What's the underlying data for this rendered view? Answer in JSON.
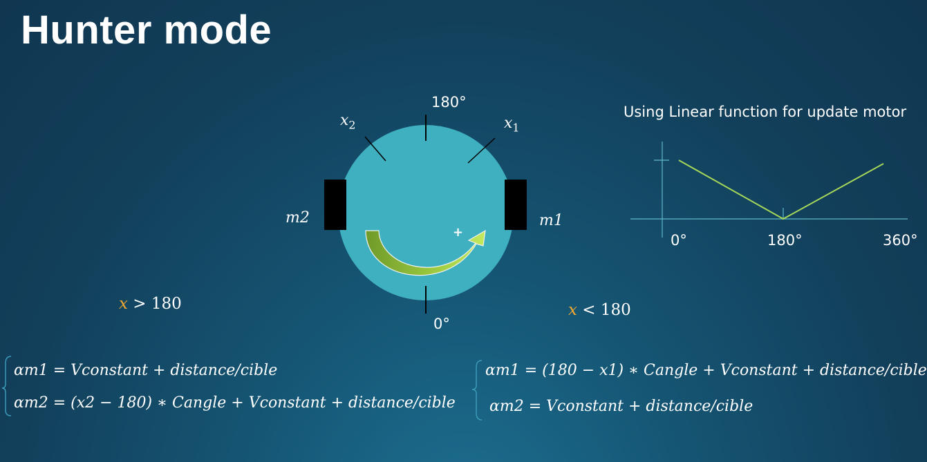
{
  "title": "Hunter mode",
  "caption": "Using Linear function for update motor",
  "robot": {
    "top_angle": "180°",
    "bottom_angle": "0°",
    "sensor_left": "x",
    "sensor_left_sub": "2",
    "sensor_right": "x",
    "sensor_right_sub": "1",
    "motor_left": "m2",
    "motor_right": "m1",
    "plus_sign": "+"
  },
  "graph": {
    "tick_labels": [
      "0°",
      "180°",
      "360°"
    ]
  },
  "conditions": {
    "left": {
      "var": "x",
      "rest": " > 180"
    },
    "right": {
      "var": "x",
      "rest": " < 180"
    }
  },
  "equations": {
    "left": [
      "αm1 = Vconstant + distance/cible",
      "αm2 = (x2 − 180) ∗ Cangle + Vconstant + distance/cible"
    ],
    "right": [
      "αm1 = (180 − x1) ∗ Cangle + Vconstant + distance/cible",
      "αm2 = Vconstant + distance/cible"
    ]
  },
  "colors": {
    "robot_body": "#3fb0c0",
    "graph_line": "#a8d85a",
    "axis": "#5fb8c8",
    "variable_highlight": "#f0a830",
    "arrow_dark": "#6f9a2a",
    "arrow_light": "#b8e050"
  }
}
